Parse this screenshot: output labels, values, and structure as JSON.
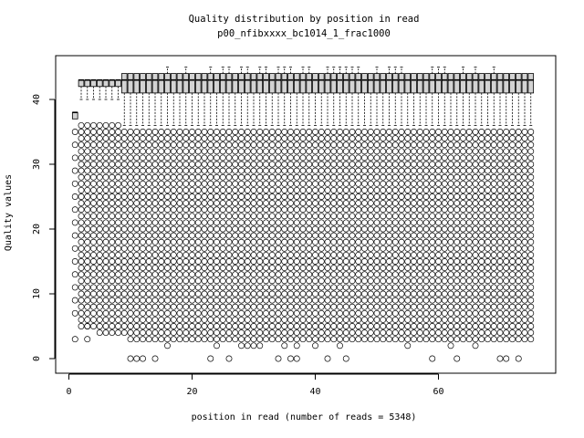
{
  "chart_data": {
    "type": "boxplot",
    "title": "Quality distribution by position in read",
    "subtitle": "p00_nfibxxxx_bc1014_1_frac1000",
    "xlabel": "position in read (number of reads = 5348)",
    "ylabel": "Quality values",
    "xlim": [
      0,
      78
    ],
    "ylim": [
      0,
      45
    ],
    "x_ticks": [
      0,
      20,
      40,
      60
    ],
    "y_ticks": [
      0,
      10,
      20,
      30,
      40
    ],
    "grid": false,
    "positions": {
      "start": 1,
      "end": 75
    },
    "segments": [
      {
        "from": 1,
        "to": 1,
        "q1": 37,
        "median": 38,
        "q3": 38,
        "whisker_low": 37,
        "whisker_high": 38
      },
      {
        "from": 2,
        "to": 8,
        "q1": 42,
        "median": 43,
        "q3": 43,
        "whisker_low": 40,
        "whisker_high": 43
      },
      {
        "from": 9,
        "to": 75,
        "q1": 41,
        "median": 43,
        "q3": 44,
        "whisker_low": 36,
        "whisker_high": 44
      }
    ],
    "high_whisker_positions": [
      16,
      19,
      23,
      25,
      26,
      28,
      29,
      31,
      32,
      34,
      35,
      36,
      38,
      39,
      42,
      43,
      44,
      45,
      46,
      47,
      50,
      52,
      53,
      54,
      59,
      60,
      61,
      64,
      66,
      69
    ],
    "high_whisker_value": 45,
    "dense_outlier_range": {
      "from": 3,
      "to": 36
    },
    "low_outliers": [
      {
        "x": 1,
        "y": 3
      },
      {
        "x": 1,
        "y": 7
      },
      {
        "x": 3,
        "y": 3
      },
      {
        "x": 3,
        "y": 5
      },
      {
        "x": 10,
        "y": 0
      },
      {
        "x": 11,
        "y": 0
      },
      {
        "x": 12,
        "y": 0
      },
      {
        "x": 14,
        "y": 0
      },
      {
        "x": 16,
        "y": 2
      },
      {
        "x": 23,
        "y": 0
      },
      {
        "x": 24,
        "y": 2
      },
      {
        "x": 26,
        "y": 0
      },
      {
        "x": 28,
        "y": 2
      },
      {
        "x": 29,
        "y": 2
      },
      {
        "x": 30,
        "y": 2
      },
      {
        "x": 31,
        "y": 2
      },
      {
        "x": 34,
        "y": 0
      },
      {
        "x": 35,
        "y": 2
      },
      {
        "x": 36,
        "y": 0
      },
      {
        "x": 37,
        "y": 0
      },
      {
        "x": 37,
        "y": 2
      },
      {
        "x": 40,
        "y": 2
      },
      {
        "x": 42,
        "y": 0
      },
      {
        "x": 44,
        "y": 2
      },
      {
        "x": 45,
        "y": 0
      },
      {
        "x": 55,
        "y": 2
      },
      {
        "x": 59,
        "y": 0
      },
      {
        "x": 62,
        "y": 2
      },
      {
        "x": 63,
        "y": 0
      },
      {
        "x": 66,
        "y": 2
      },
      {
        "x": 70,
        "y": 0
      },
      {
        "x": 71,
        "y": 0
      },
      {
        "x": 73,
        "y": 0
      }
    ]
  }
}
